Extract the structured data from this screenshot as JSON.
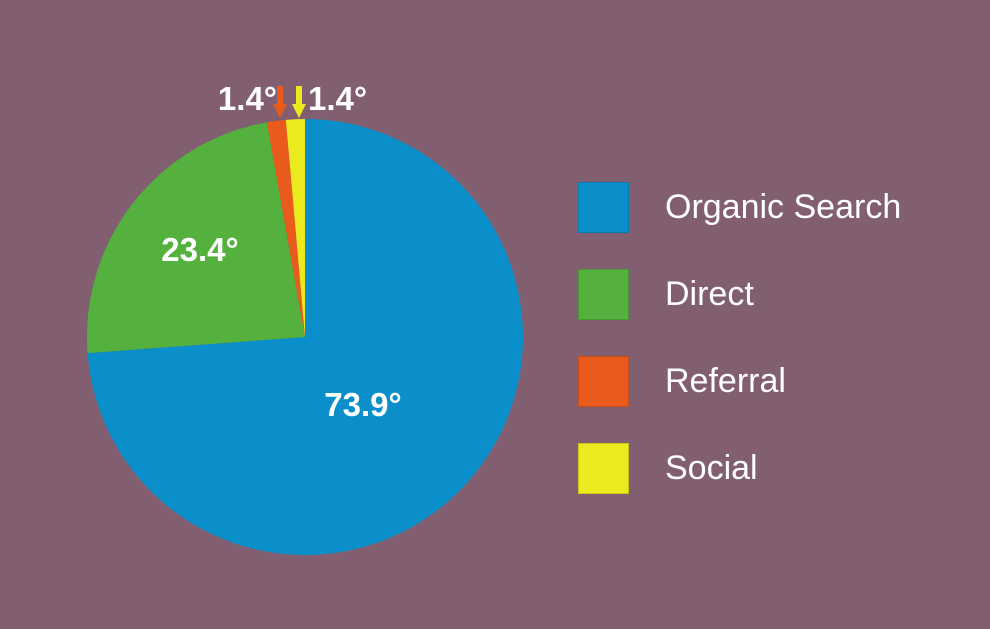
{
  "chart_data": {
    "type": "pie",
    "categories": [
      "Organic Search",
      "Direct",
      "Referral",
      "Social"
    ],
    "values": [
      73.9,
      23.4,
      1.4,
      1.4
    ],
    "data_labels": [
      "73.9°",
      "23.4°",
      "1.4°",
      "1.4°"
    ],
    "colors": [
      "#0a8fca",
      "#55b13e",
      "#e95a1d",
      "#eaea1f"
    ],
    "legend": "right",
    "start_angle_deg": 0,
    "direction": "clockwise"
  },
  "legend": {
    "items": [
      {
        "label": "Organic Search",
        "color": "#0a8fca"
      },
      {
        "label": "Direct",
        "color": "#55b13e"
      },
      {
        "label": "Referral",
        "color": "#e95a1d"
      },
      {
        "label": "Social",
        "color": "#eaea1f"
      }
    ]
  }
}
